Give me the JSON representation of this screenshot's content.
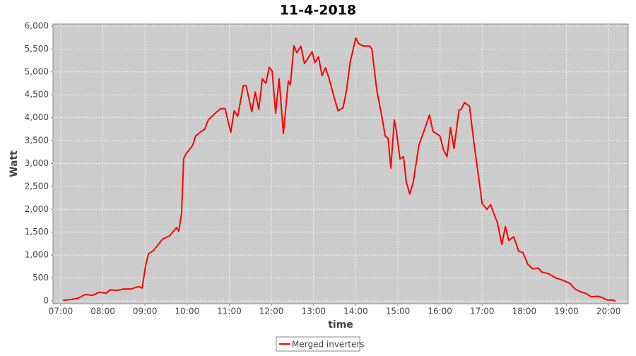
{
  "chart_data": {
    "type": "line",
    "title": "11-4-2018",
    "x_label": "time",
    "y_label": "Watt",
    "x": [
      "07:03",
      "07:15",
      "07:25",
      "07:35",
      "07:45",
      "07:55",
      "08:05",
      "08:10",
      "08:20",
      "08:30",
      "08:40",
      "08:50",
      "08:53",
      "08:56",
      "09:01",
      "09:05",
      "09:12",
      "09:20",
      "09:25",
      "09:35",
      "09:45",
      "09:48",
      "09:52",
      "09:55",
      "09:58",
      "10:03",
      "10:08",
      "10:12",
      "10:20",
      "10:25",
      "10:30",
      "10:40",
      "10:48",
      "10:54",
      "11:02",
      "11:07",
      "11:12",
      "11:20",
      "11:24",
      "11:32",
      "11:37",
      "11:42",
      "11:47",
      "11:52",
      "11:57",
      "12:01",
      "12:06",
      "12:11",
      "12:17",
      "12:24",
      "12:27",
      "12:32",
      "12:36",
      "12:42",
      "12:47",
      "12:58",
      "13:02",
      "13:07",
      "13:12",
      "13:17",
      "13:22",
      "13:30",
      "13:35",
      "13:42",
      "13:47",
      "13:52",
      "14:00",
      "14:04",
      "14:10",
      "14:20",
      "14:23",
      "14:30",
      "14:37",
      "14:42",
      "14:46",
      "14:50",
      "14:55",
      "14:58",
      "15:03",
      "15:08",
      "15:12",
      "15:17",
      "15:22",
      "15:30",
      "15:37",
      "15:45",
      "15:50",
      "15:55",
      "16:00",
      "16:05",
      "16:10",
      "16:15",
      "16:20",
      "16:27",
      "16:30",
      "16:35",
      "16:42",
      "16:48",
      "16:55",
      "17:00",
      "17:07",
      "17:12",
      "17:18",
      "17:22",
      "17:28",
      "17:33",
      "17:38",
      "17:45",
      "17:52",
      "17:58",
      "18:05",
      "18:12",
      "18:20",
      "18:25",
      "18:35",
      "18:45",
      "18:55",
      "19:05",
      "19:12",
      "19:20",
      "19:28",
      "19:35",
      "19:45",
      "19:50",
      "19:58",
      "20:05",
      "20:10"
    ],
    "series": [
      {
        "name": "Merged inverters",
        "color": "#ff0000",
        "values": [
          10,
          30,
          60,
          140,
          120,
          190,
          170,
          240,
          230,
          260,
          260,
          310,
          300,
          280,
          780,
          1030,
          1100,
          1250,
          1350,
          1420,
          1600,
          1520,
          1900,
          3100,
          3200,
          3300,
          3400,
          3600,
          3700,
          3750,
          3950,
          4100,
          4200,
          4200,
          3680,
          4150,
          4030,
          4700,
          4700,
          4130,
          4560,
          4180,
          4850,
          4750,
          5100,
          5020,
          4100,
          4850,
          3650,
          4800,
          4720,
          5570,
          5420,
          5560,
          5180,
          5440,
          5200,
          5330,
          4920,
          5090,
          4860,
          4400,
          4150,
          4220,
          4600,
          5200,
          5740,
          5620,
          5570,
          5560,
          5500,
          4600,
          4050,
          3600,
          3550,
          2900,
          3950,
          3700,
          3100,
          3150,
          2600,
          2330,
          2600,
          3400,
          3700,
          4060,
          3700,
          3650,
          3600,
          3300,
          3150,
          3780,
          3330,
          4170,
          4180,
          4330,
          4250,
          3500,
          2700,
          2120,
          2000,
          2100,
          1850,
          1700,
          1230,
          1620,
          1320,
          1400,
          1080,
          1060,
          800,
          700,
          720,
          630,
          590,
          500,
          450,
          380,
          260,
          200,
          160,
          90,
          100,
          80,
          20,
          20,
          0
        ]
      }
    ],
    "xlim": [
      "06:49",
      "20:28"
    ],
    "xticks": [
      "07:00",
      "08:00",
      "09:00",
      "10:00",
      "11:00",
      "12:00",
      "13:00",
      "14:00",
      "15:00",
      "16:00",
      "17:00",
      "18:00",
      "19:00",
      "20:00"
    ],
    "ylim": [
      -62,
      6046
    ],
    "yticks": [
      0,
      500,
      {
        "value": 1000,
        "label": "1,000"
      },
      {
        "value": 1500,
        "label": "1,500"
      },
      {
        "value": 2000,
        "label": "2,000"
      },
      {
        "value": 2500,
        "label": "2,500"
      },
      {
        "value": 3000,
        "label": "3,000"
      },
      {
        "value": 3500,
        "label": "3,500"
      },
      {
        "value": 4000,
        "label": "4,000"
      },
      {
        "value": 4500,
        "label": "4,500"
      },
      {
        "value": 5000,
        "label": "5,000"
      },
      {
        "value": 5500,
        "label": "5,500"
      },
      {
        "value": 6000,
        "label": "6,000"
      }
    ],
    "grid": true,
    "legend": "bottom"
  }
}
